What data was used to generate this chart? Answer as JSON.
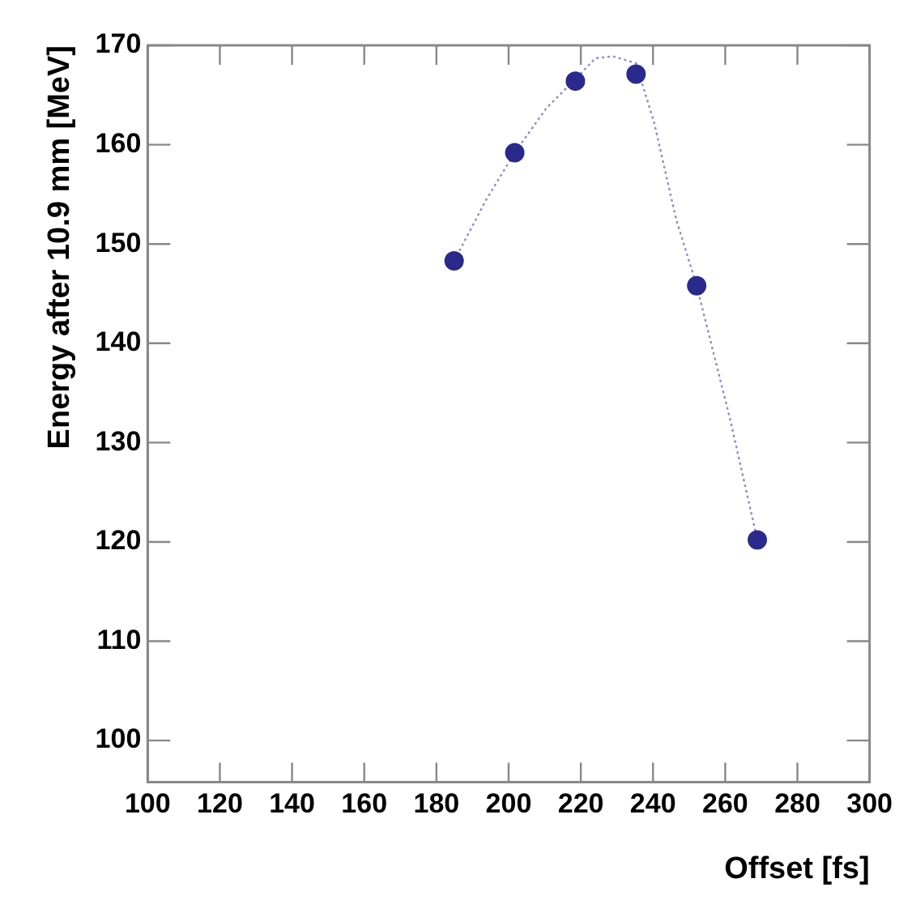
{
  "chart_data": {
    "type": "scatter",
    "xlabel": "Offset [fs]",
    "ylabel": "Energy after 10.9 mm [MeV]",
    "xlim": [
      100,
      300
    ],
    "xticks": [
      100,
      120,
      140,
      160,
      180,
      200,
      220,
      240,
      260,
      280,
      300
    ],
    "ylim": [
      95.8,
      170
    ],
    "yticks": [
      100,
      110,
      120,
      130,
      140,
      150,
      160,
      170
    ],
    "grid": false,
    "legend": false,
    "marker": "circle",
    "series": [
      {
        "color": "#2a2a8c",
        "x": [
          184.9,
          201.7,
          218.5,
          235.3,
          252.1,
          268.9
        ],
        "values": [
          148.3,
          159.2,
          166.4,
          167.1,
          145.8,
          120.2
        ]
      },
      {
        "type": "line",
        "color": "#8a8ad0",
        "marker": "none",
        "line_style": "dotted",
        "x": [
          184.9,
          193.7,
          201.7,
          210.5,
          218.5,
          224,
          228.9,
          235.3,
          240.4,
          246.4,
          252.1,
          261.4,
          268.9
        ],
        "values": [
          148.3,
          154.4,
          159.2,
          163.7,
          166.6,
          168.7,
          168.9,
          168.2,
          162.1,
          152.5,
          145.8,
          132.3,
          120.2
        ]
      }
    ]
  }
}
